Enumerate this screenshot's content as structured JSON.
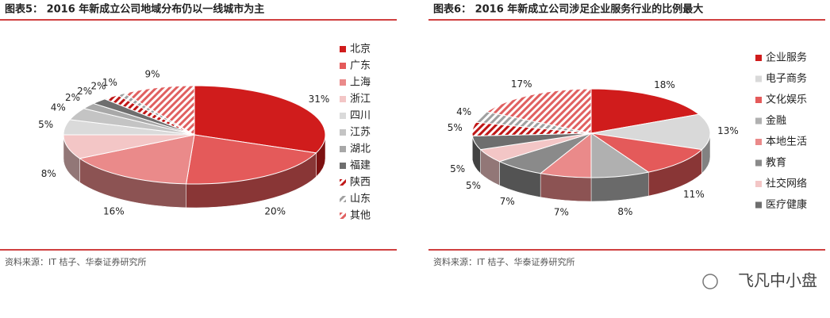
{
  "chart_data": [
    {
      "type": "pie3d",
      "title": "图表5：  2016 年新成立公司地域分布仍以一线城市为主",
      "categories": [
        "北京",
        "广东",
        "上海",
        "浙江",
        "四川",
        "江苏",
        "湖北",
        "福建",
        "陕西",
        "山东",
        "其他"
      ],
      "values": [
        31,
        20,
        16,
        8,
        5,
        4,
        2,
        2,
        2,
        1,
        9
      ],
      "value_labels": [
        "31%",
        "20%",
        "16%",
        "8%",
        "5%",
        "4%",
        "2%",
        "2%",
        "2%",
        "1%",
        "9%"
      ],
      "colors": [
        "#d01c1c",
        "#e45a5a",
        "#ea8a8a",
        "#f3c6c6",
        "#dadada",
        "#c4c4c4",
        "#a8a8a8",
        "#6e6e6e",
        "#c01818",
        "#a0a0a0",
        "#e06060"
      ],
      "hatch": [
        false,
        false,
        false,
        false,
        false,
        false,
        false,
        false,
        true,
        true,
        true
      ],
      "source": "资料来源：IT 桔子、华泰证券研究所"
    },
    {
      "type": "pie3d",
      "title": "图表6：  2016 年新成立公司涉足企业服务行业的比例最大",
      "categories": [
        "企业服务",
        "电子商务",
        "文化娱乐",
        "金融",
        "本地生活",
        "教育",
        "社交网络",
        "医疗健康",
        null,
        null,
        null
      ],
      "values": [
        18,
        13,
        11,
        8,
        7,
        7,
        5,
        5,
        5,
        4,
        17
      ],
      "value_labels": [
        "18%",
        "13%",
        "11%",
        "8%",
        "7%",
        "7%",
        "5%",
        "5%",
        "5%",
        "4%",
        "17%"
      ],
      "colors": [
        "#d01c1c",
        "#d9d9d9",
        "#e45a5a",
        "#b0b0b0",
        "#ea8a8a",
        "#8a8a8a",
        "#f3c6c6",
        "#6e6e6e",
        "#c01818",
        "#a0a0a0",
        "#e06060"
      ],
      "hatch": [
        false,
        false,
        false,
        false,
        false,
        false,
        false,
        false,
        true,
        true,
        true
      ],
      "source": "资料来源：IT 桔子、华泰证券研究所"
    }
  ],
  "watermark": "飞凡中小盘"
}
